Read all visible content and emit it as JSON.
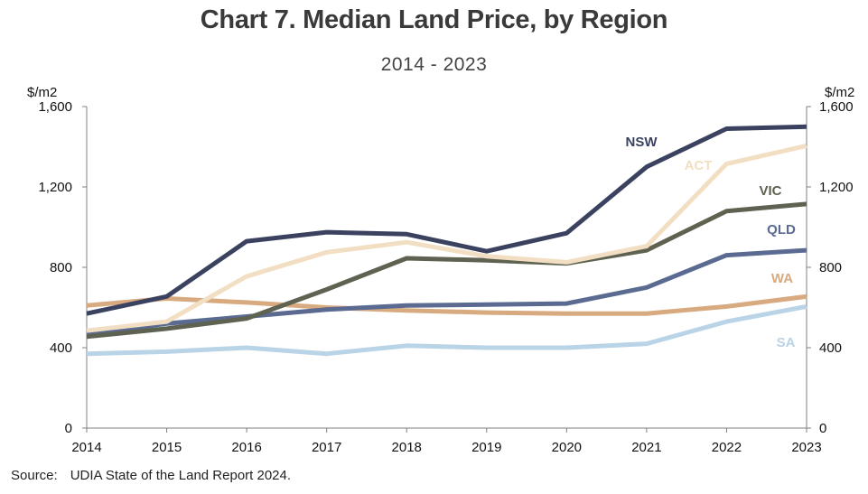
{
  "chart_data": {
    "type": "line",
    "title": "Chart 7. Median Land Price, by Region",
    "subtitle": "2014 - 2023",
    "ylabel_left": "$/m2",
    "ylabel_right": "$/m2",
    "xlabel": "",
    "ylim": [
      0,
      1600
    ],
    "yticks": [
      0,
      400,
      800,
      1200,
      1600
    ],
    "ytick_labels": [
      "0",
      "400",
      "800",
      "1,200",
      "1,600"
    ],
    "categories": [
      "2014",
      "2015",
      "2016",
      "2017",
      "2018",
      "2019",
      "2020",
      "2021",
      "2022",
      "2023"
    ],
    "grid": false,
    "series": [
      {
        "name": "SA",
        "color": "#b9d3e7",
        "values": [
          370,
          380,
          400,
          370,
          410,
          400,
          400,
          420,
          530,
          605
        ]
      },
      {
        "name": "WA",
        "color": "#d8aa80",
        "values": [
          610,
          645,
          625,
          600,
          585,
          575,
          570,
          570,
          605,
          655
        ]
      },
      {
        "name": "QLD",
        "color": "#5b6a91",
        "values": [
          465,
          520,
          555,
          590,
          610,
          615,
          620,
          700,
          860,
          885
        ]
      },
      {
        "name": "VIC",
        "color": "#5e6251",
        "values": [
          455,
          495,
          545,
          690,
          845,
          835,
          820,
          885,
          1080,
          1115
        ]
      },
      {
        "name": "ACT",
        "color": "#f2dfc3",
        "values": [
          485,
          530,
          755,
          875,
          925,
          855,
          825,
          905,
          1315,
          1405
        ]
      },
      {
        "name": "NSW",
        "color": "#3a4260",
        "values": [
          570,
          655,
          930,
          975,
          965,
          880,
          970,
          1300,
          1490,
          1500
        ]
      }
    ]
  },
  "source": {
    "label": "Source:",
    "text": "UDIA State of the Land Report 2024."
  }
}
